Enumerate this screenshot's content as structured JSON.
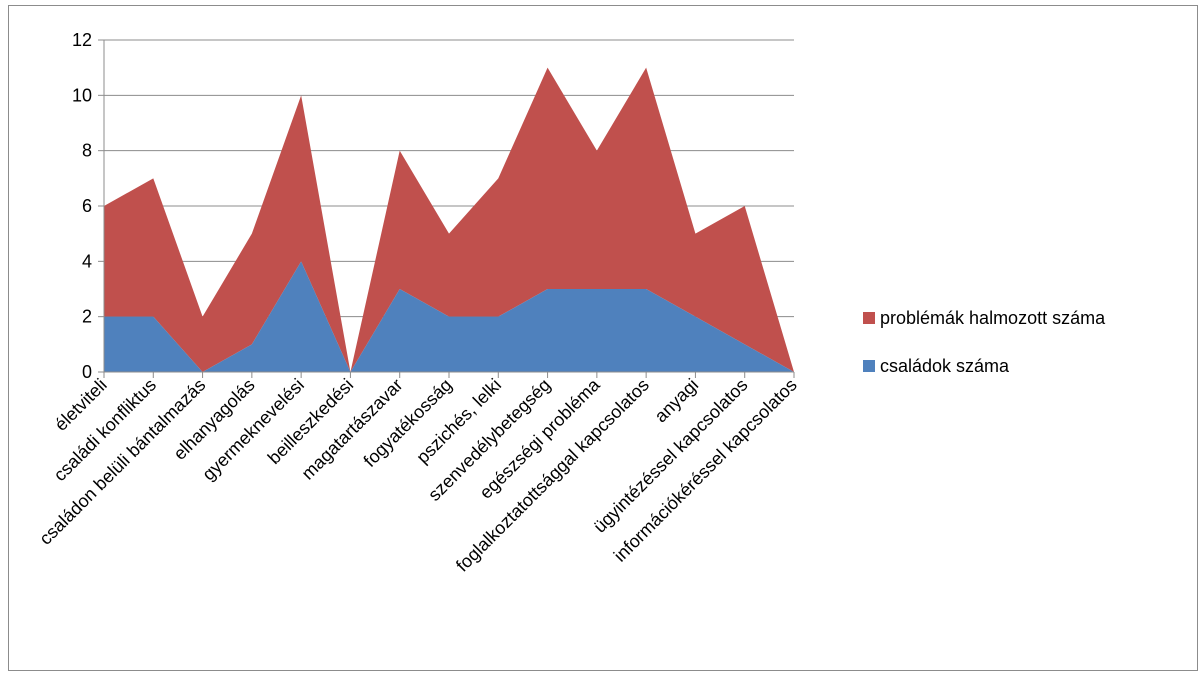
{
  "chart_data": {
    "type": "area",
    "stacked": true,
    "categories": [
      "életviteli",
      "családi konfliktus",
      "családon belüli bántalmazás",
      "elhanyagolás",
      "gyermeknevelési",
      "beilleszkedési",
      "magatartászavar",
      "fogyatékosság",
      "pszichés, lelki",
      "szenvedélybetegség",
      "egészségi probléma",
      "foglalkoztatottsággal kapcsolatos",
      "anyagi",
      "ügyintézéssel kapcsolatos",
      "információkéréssel kapcsolatos"
    ],
    "series": [
      {
        "name": "családok száma",
        "color": "#4f81bd",
        "values": [
          2,
          2,
          0,
          1,
          4,
          0,
          3,
          2,
          2,
          3,
          3,
          3,
          2,
          1,
          0
        ]
      },
      {
        "name": "problémák halmozott száma",
        "color": "#c0504d",
        "values": [
          4,
          5,
          2,
          4,
          6,
          0,
          5,
          3,
          5,
          8,
          5,
          8,
          3,
          5,
          0
        ]
      }
    ],
    "ylim": [
      0,
      12
    ],
    "yticks": [
      "0",
      "2",
      "4",
      "6",
      "8",
      "10",
      "12"
    ],
    "grid": true,
    "legend_position": "right",
    "title": "",
    "xlabel": "",
    "ylabel": ""
  }
}
